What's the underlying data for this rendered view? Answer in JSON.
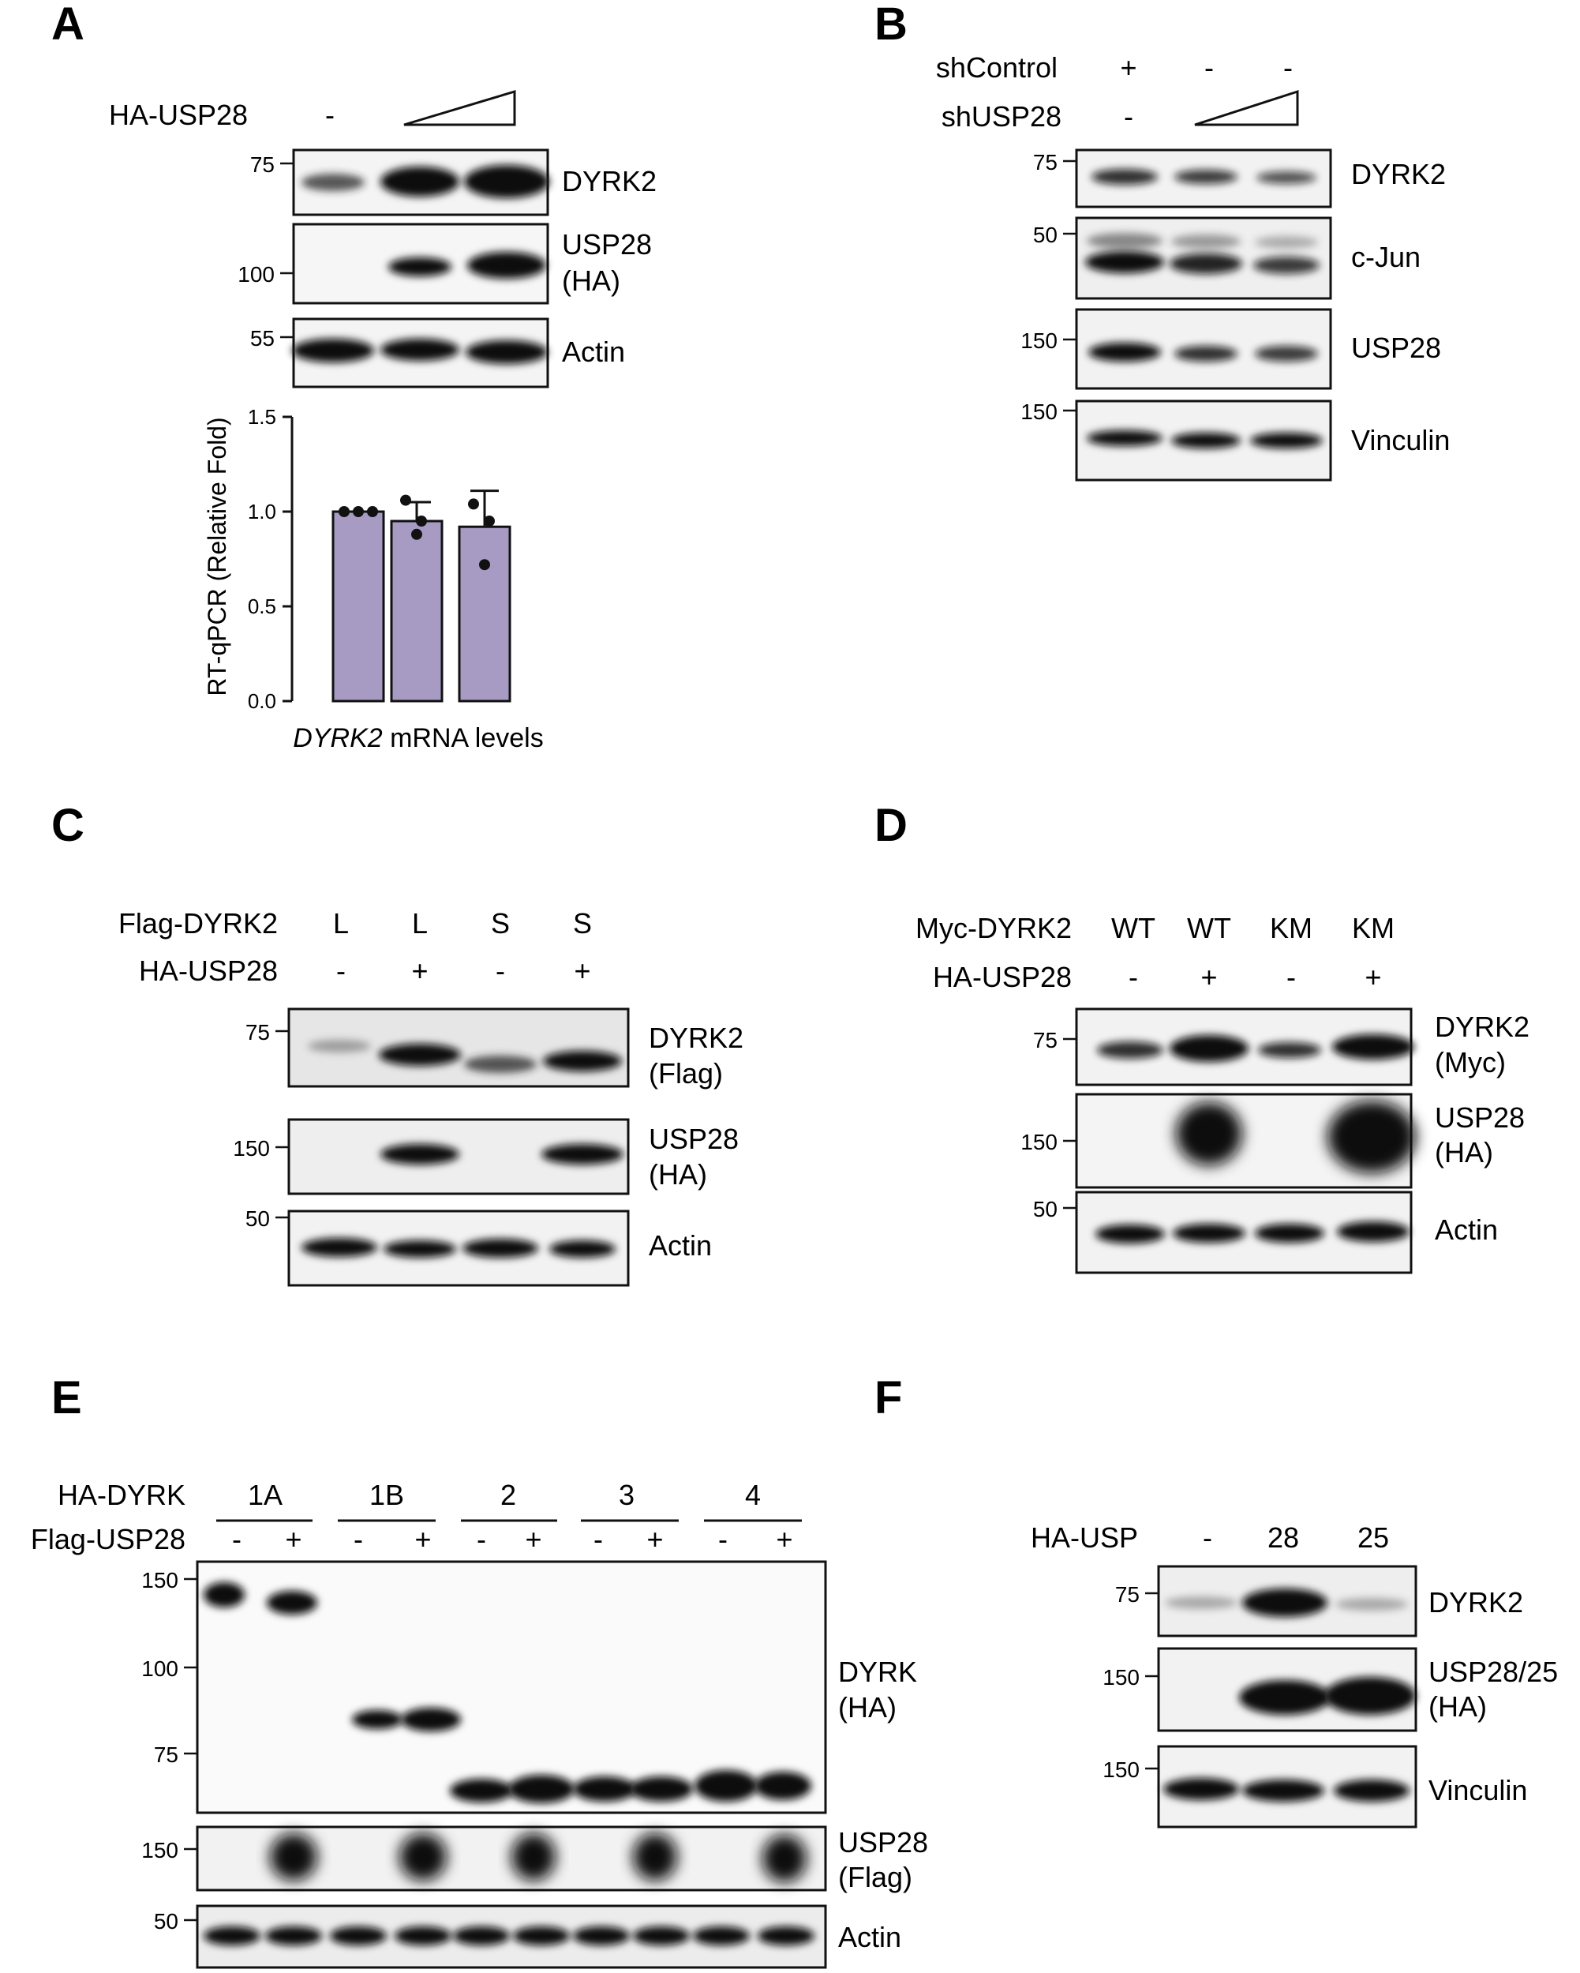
{
  "panels": {
    "A": {
      "label": "A",
      "row1": {
        "name": "HA-USP28",
        "values": [
          "-",
          "",
          ""
        ]
      },
      "blots": [
        {
          "markers": [
            "75"
          ],
          "labels": [
            "DYRK2"
          ]
        },
        {
          "markers": [
            "100"
          ],
          "labels": [
            "USP28",
            "(HA)"
          ]
        },
        {
          "markers": [
            "55"
          ],
          "labels": [
            "Actin"
          ]
        }
      ]
    },
    "B": {
      "label": "B",
      "row1": {
        "name": "shControl",
        "values": [
          "+",
          "-",
          "-"
        ]
      },
      "row2": {
        "name": "shUSP28",
        "values": [
          "-",
          "",
          ""
        ]
      },
      "blots": [
        {
          "markers": [
            "75"
          ],
          "labels": [
            "DYRK2"
          ]
        },
        {
          "markers": [
            "50"
          ],
          "labels": [
            "c-Jun"
          ]
        },
        {
          "markers": [
            "150"
          ],
          "labels": [
            "USP28"
          ]
        },
        {
          "markers": [
            "150"
          ],
          "labels": [
            "Vinculin"
          ]
        }
      ]
    },
    "C": {
      "label": "C",
      "row1": {
        "name": "Flag-DYRK2",
        "values": [
          "L",
          "L",
          "S",
          "S"
        ]
      },
      "row2": {
        "name": "HA-USP28",
        "values": [
          "-",
          "+",
          "-",
          "+"
        ]
      },
      "blots": [
        {
          "markers": [
            "75"
          ],
          "labels": [
            "DYRK2",
            "(Flag)"
          ]
        },
        {
          "markers": [
            "150"
          ],
          "labels": [
            "USP28",
            "(HA)"
          ]
        },
        {
          "markers": [
            "50"
          ],
          "labels": [
            "Actin"
          ]
        }
      ]
    },
    "D": {
      "label": "D",
      "row1": {
        "name": "Myc-DYRK2",
        "values": [
          "WT",
          "WT",
          "KM",
          "KM"
        ]
      },
      "row2": {
        "name": "HA-USP28",
        "values": [
          "-",
          "+",
          "-",
          "+"
        ]
      },
      "blots": [
        {
          "markers": [
            "75"
          ],
          "labels": [
            "DYRK2",
            "(Myc)"
          ]
        },
        {
          "markers": [
            "150"
          ],
          "labels": [
            "USP28",
            "(HA)"
          ]
        },
        {
          "markers": [
            "50"
          ],
          "labels": [
            "Actin"
          ]
        }
      ]
    },
    "E": {
      "label": "E",
      "row1": {
        "name": "HA-DYRK",
        "groups": [
          "1A",
          "1B",
          "2",
          "3",
          "4"
        ]
      },
      "row2": {
        "name": "Flag-USP28",
        "values": [
          "-",
          "+",
          "-",
          "+",
          "-",
          "+",
          "-",
          "+",
          "-",
          "+"
        ]
      },
      "blots": [
        {
          "markers": [
            "150",
            "100",
            "75"
          ],
          "labels": [
            "DYRK",
            "(HA)"
          ]
        },
        {
          "markers": [
            "150"
          ],
          "labels": [
            "USP28",
            "(Flag)"
          ]
        },
        {
          "markers": [
            "50"
          ],
          "labels": [
            "Actin"
          ]
        }
      ]
    },
    "F": {
      "label": "F",
      "row1": {
        "name": "HA-USP",
        "values": [
          "-",
          "28",
          "25"
        ]
      },
      "blots": [
        {
          "markers": [
            "75"
          ],
          "labels": [
            "DYRK2"
          ]
        },
        {
          "markers": [
            "150"
          ],
          "labels": [
            "USP28/25",
            "(HA)"
          ]
        },
        {
          "markers": [
            "150"
          ],
          "labels": [
            "Vinculin"
          ]
        }
      ]
    }
  },
  "chart_data": {
    "type": "bar",
    "ylabel": "RT-qPCR (Relative Fold)",
    "xlabel_italic": "DYRK2",
    "xlabel_rest": " mRNA levels",
    "ylim": [
      0,
      1.5
    ],
    "yticks": [
      "0.0",
      "0.5",
      "1.0",
      "1.5"
    ],
    "bar_color": "#a79bc3",
    "values": [
      1.0,
      0.95,
      0.92
    ],
    "errors": [
      0.0,
      0.1,
      0.19
    ],
    "points": [
      [
        1.0,
        1.0,
        1.0
      ],
      [
        1.06,
        0.95,
        0.88
      ],
      [
        1.04,
        0.95,
        0.72
      ]
    ]
  }
}
